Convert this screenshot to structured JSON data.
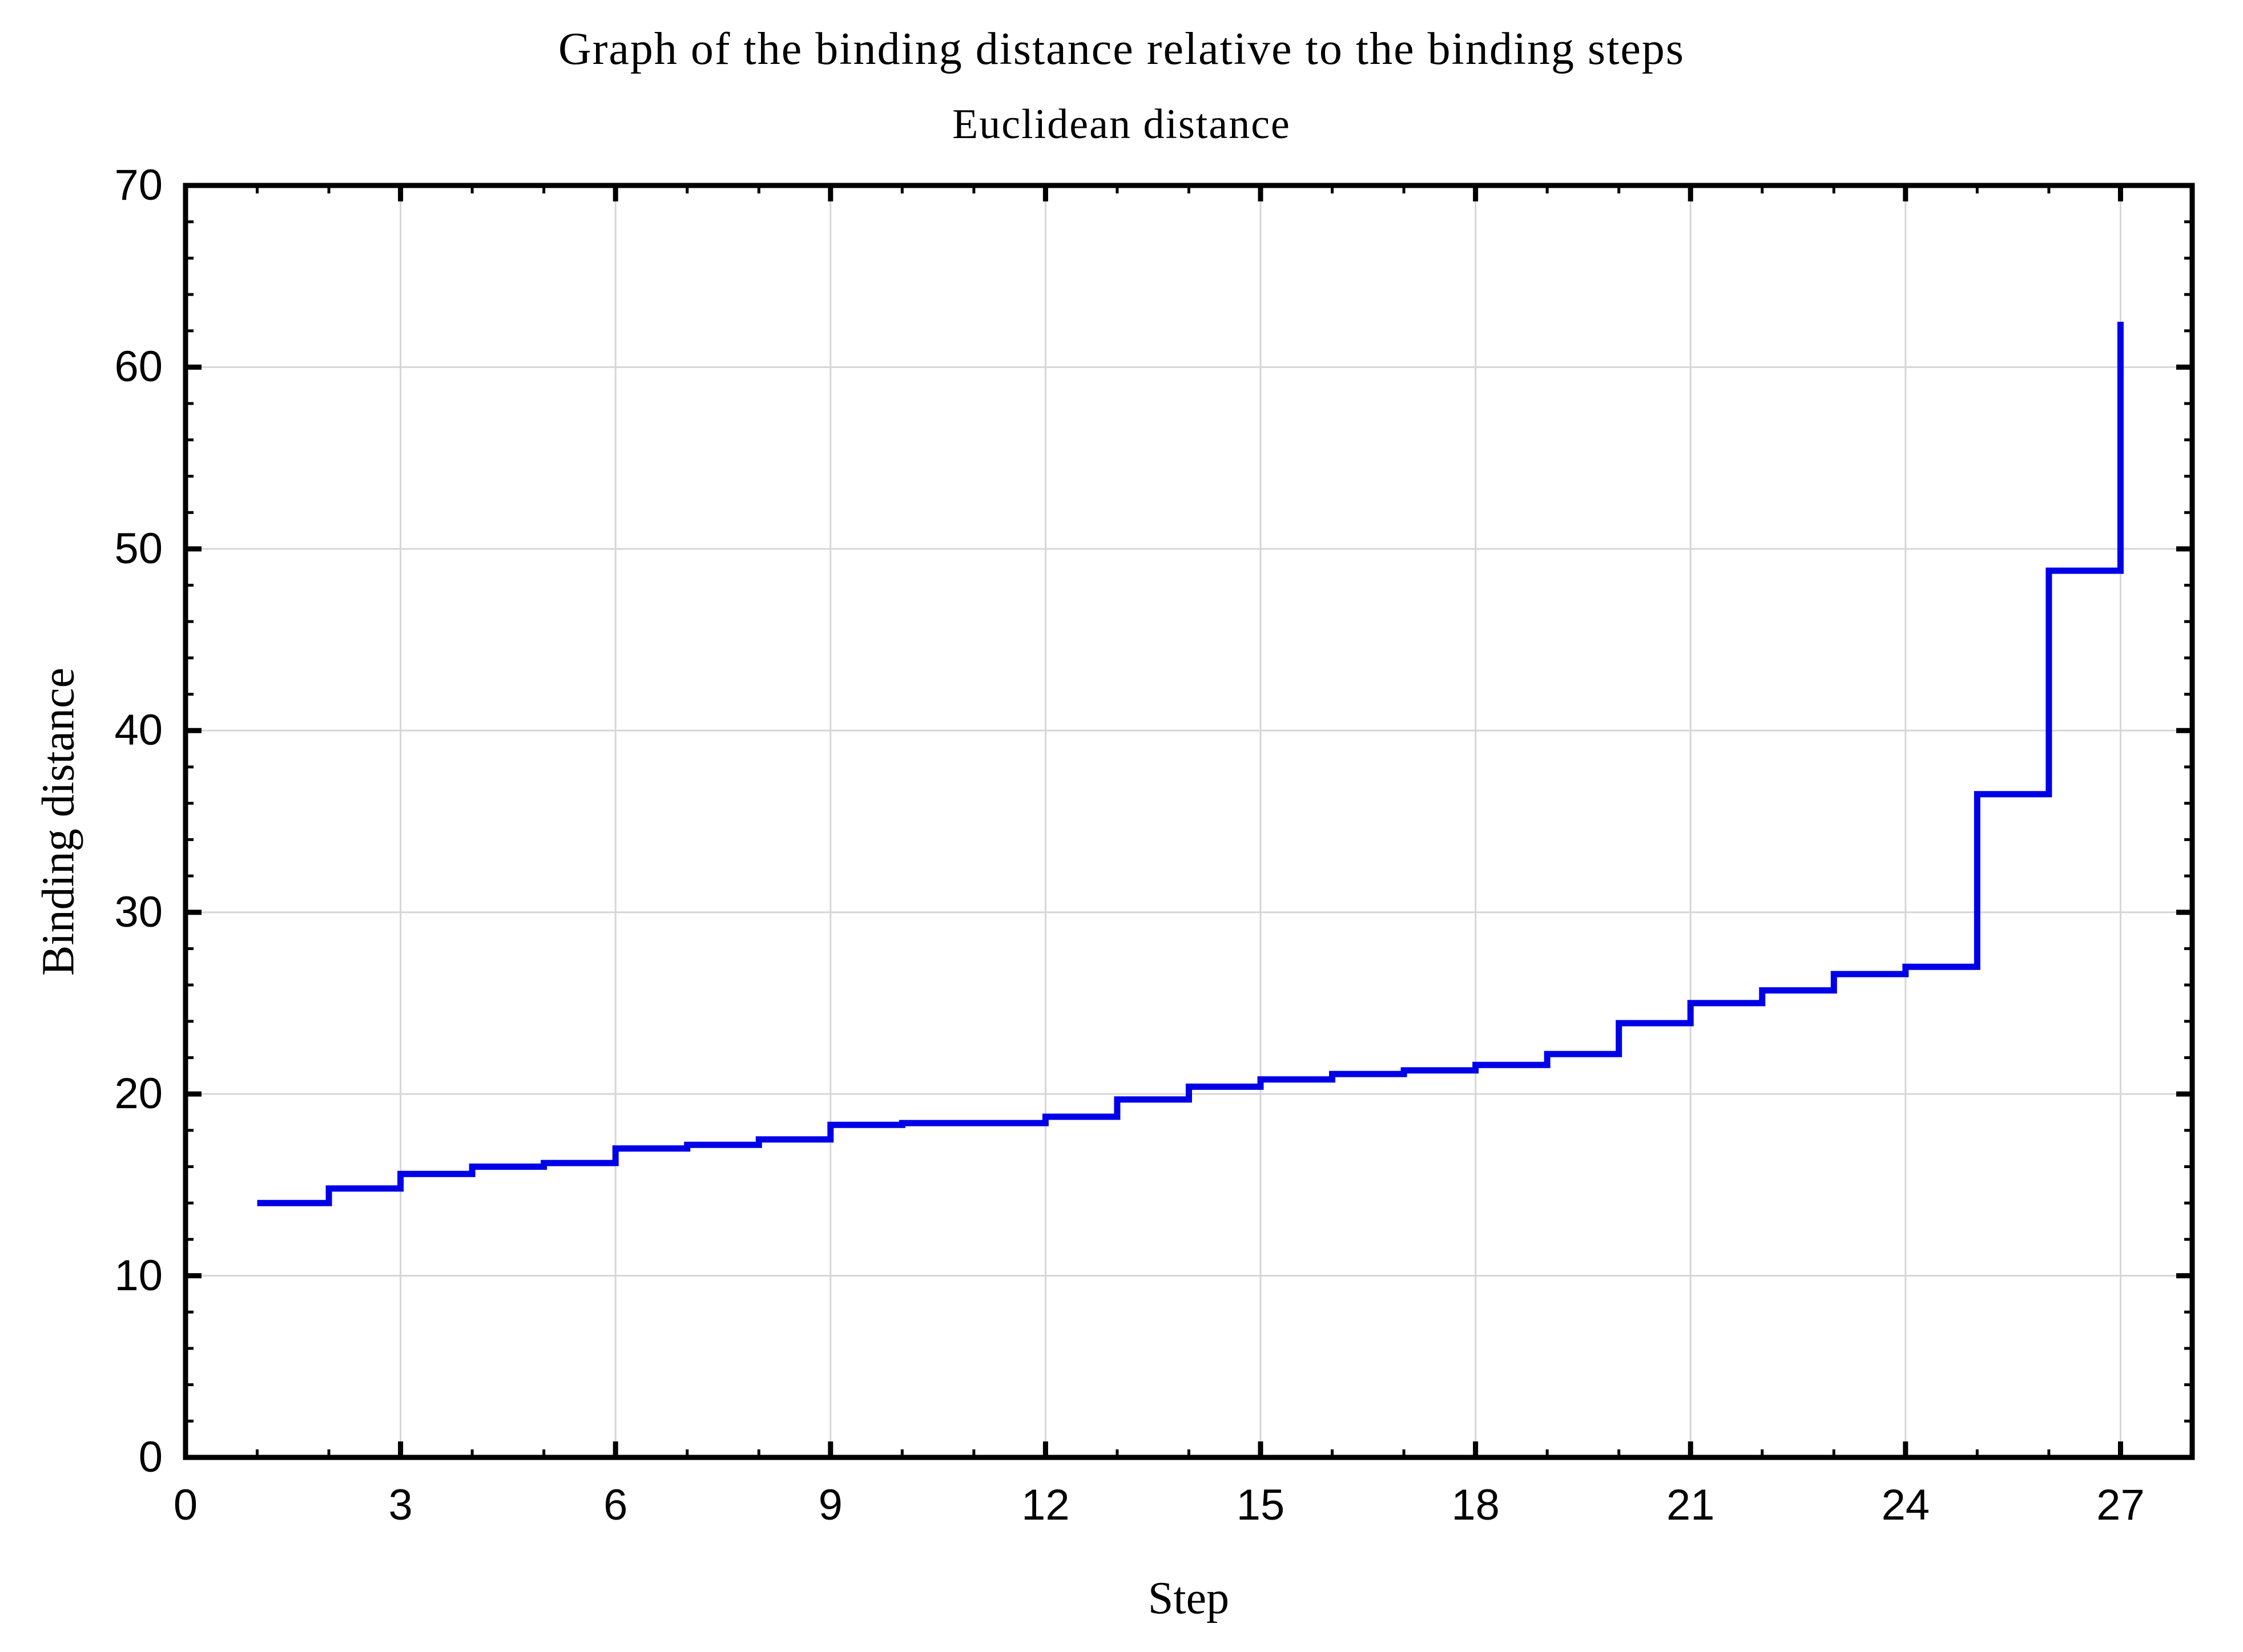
{
  "chart_data": {
    "type": "line",
    "step_mode": "post",
    "title": "Graph of the binding distance relative to the binding steps",
    "subtitle": "Euclidean distance",
    "xlabel": "Step",
    "ylabel": "Binding distance",
    "x": [
      1,
      2,
      3,
      4,
      5,
      6,
      7,
      8,
      9,
      10,
      11,
      12,
      13,
      14,
      15,
      16,
      17,
      18,
      19,
      20,
      21,
      22,
      23,
      24,
      25,
      26,
      27
    ],
    "y": [
      14.0,
      14.8,
      15.6,
      16.0,
      16.2,
      17.0,
      17.2,
      17.5,
      18.3,
      18.4,
      18.4,
      18.75,
      19.7,
      20.4,
      20.8,
      21.1,
      21.3,
      21.6,
      22.2,
      23.9,
      25.0,
      25.7,
      26.6,
      27.0,
      36.5,
      48.8,
      62.5
    ],
    "xlim": [
      0,
      28
    ],
    "ylim": [
      0,
      70
    ],
    "x_major_ticks": [
      0,
      3,
      6,
      9,
      12,
      15,
      18,
      21,
      24,
      27
    ],
    "x_minor_step": 1,
    "y_major_ticks": [
      0,
      10,
      20,
      30,
      40,
      50,
      60,
      70
    ],
    "y_minor_step": 2,
    "x_tick_labels": [
      "0",
      "3",
      "6",
      "9",
      "12",
      "15",
      "18",
      "21",
      "24",
      "27"
    ],
    "y_tick_labels": [
      "0",
      "10",
      "20",
      "30",
      "40",
      "50",
      "60",
      "70"
    ],
    "grid": true,
    "legend": "none",
    "line_color": "#0000e8",
    "grid_color": "#d6d6d6",
    "axis_color": "#000000",
    "background_color": "#ffffff"
  }
}
